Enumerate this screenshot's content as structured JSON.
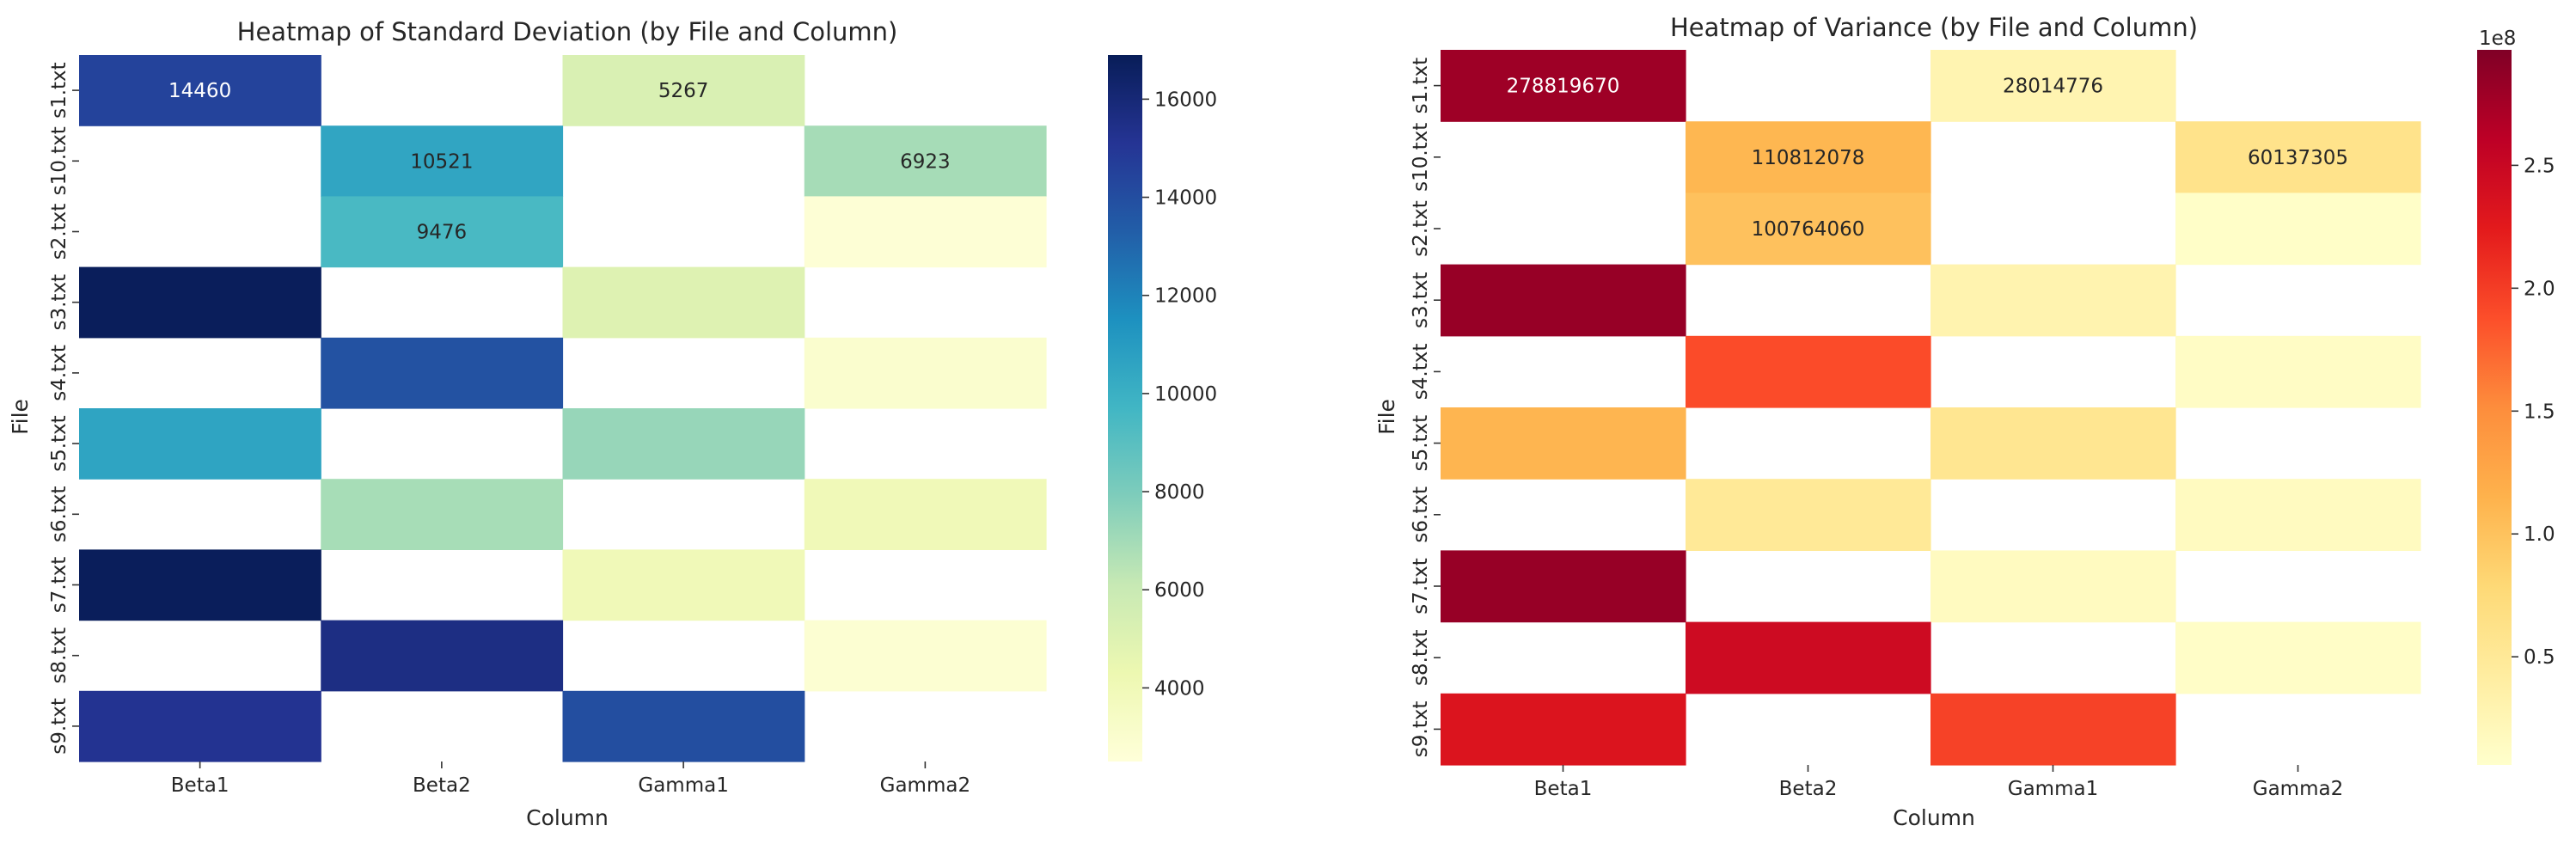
{
  "chart_data": [
    {
      "type": "heatmap",
      "title": "Heatmap of Standard Deviation (by File and Column)",
      "xlabel": "Column",
      "ylabel": "File",
      "columns": [
        "Beta1",
        "Beta2",
        "Gamma1",
        "Gamma2"
      ],
      "rows": [
        "s1.txt",
        "s10.txt",
        "s2.txt",
        "s3.txt",
        "s4.txt",
        "s5.txt",
        "s6.txt",
        "s7.txt",
        "s8.txt",
        "s9.txt"
      ],
      "values": [
        [
          14460,
          null,
          5267,
          null
        ],
        [
          null,
          10521,
          null,
          6923
        ],
        [
          null,
          9476,
          null,
          2700
        ],
        [
          16800,
          null,
          5000,
          null
        ],
        [
          null,
          13800,
          null,
          3000
        ],
        [
          10600,
          null,
          7300,
          null
        ],
        [
          null,
          6900,
          null,
          4000
        ],
        [
          16800,
          null,
          4000,
          null
        ],
        [
          null,
          15600,
          null,
          2800
        ],
        [
          15200,
          null,
          14000,
          null
        ]
      ],
      "annotations": [
        {
          "row": 0,
          "col": 0,
          "text": "14460"
        },
        {
          "row": 0,
          "col": 2,
          "text": "5267"
        },
        {
          "row": 1,
          "col": 1,
          "text": "10521"
        },
        {
          "row": 1,
          "col": 3,
          "text": "6923"
        },
        {
          "row": 2,
          "col": 1,
          "text": "9476"
        }
      ],
      "colormap": "YlGnBu",
      "vmin": 2500,
      "vmax": 16900,
      "colorbar_ticks": [
        4000,
        6000,
        8000,
        10000,
        12000,
        14000,
        16000
      ],
      "colorbar_tick_labels": [
        "4000",
        "6000",
        "8000",
        "10000",
        "12000",
        "14000",
        "16000"
      ],
      "colorbar_offset_label": ""
    },
    {
      "type": "heatmap",
      "title": "Heatmap of Variance (by File and Column)",
      "xlabel": "Column",
      "ylabel": "File",
      "columns": [
        "Beta1",
        "Beta2",
        "Gamma1",
        "Gamma2"
      ],
      "rows": [
        "s1.txt",
        "s10.txt",
        "s2.txt",
        "s3.txt",
        "s4.txt",
        "s5.txt",
        "s6.txt",
        "s7.txt",
        "s8.txt",
        "s9.txt"
      ],
      "values": [
        [
          278819670,
          null,
          28014776,
          null
        ],
        [
          null,
          110812078,
          null,
          60137305
        ],
        [
          null,
          100764060,
          null,
          9000000
        ],
        [
          283000000,
          null,
          30000000,
          null
        ],
        [
          null,
          190000000,
          null,
          12000000
        ],
        [
          112000000,
          null,
          55000000,
          null
        ],
        [
          null,
          50000000,
          null,
          16000000
        ],
        [
          283000000,
          null,
          16000000,
          null
        ],
        [
          null,
          245000000,
          null,
          10000000
        ],
        [
          232000000,
          null,
          196000000,
          null
        ]
      ],
      "annotations": [
        {
          "row": 0,
          "col": 0,
          "text": "278819670"
        },
        {
          "row": 0,
          "col": 2,
          "text": "28014776"
        },
        {
          "row": 1,
          "col": 1,
          "text": "110812078"
        },
        {
          "row": 1,
          "col": 3,
          "text": "60137305"
        },
        {
          "row": 2,
          "col": 1,
          "text": "100764060"
        }
      ],
      "colormap": "YlOrRd",
      "vmin": 6000000,
      "vmax": 297000000,
      "colorbar_ticks": [
        50000000,
        100000000,
        150000000,
        200000000,
        250000000
      ],
      "colorbar_tick_labels": [
        "0.5",
        "1.0",
        "1.5",
        "2.0",
        "2.5"
      ],
      "colorbar_offset_label": "1e8"
    }
  ]
}
